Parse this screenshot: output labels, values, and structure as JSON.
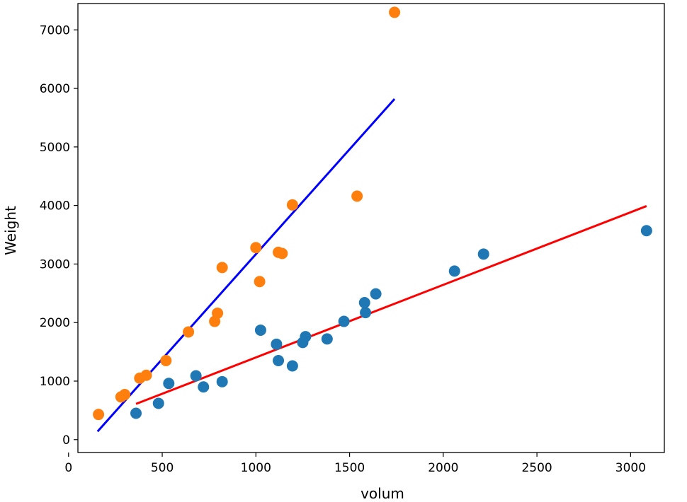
{
  "chart_data": {
    "type": "scatter",
    "title": "",
    "xlabel": "volum",
    "ylabel": "Weight",
    "xlim": [
      50,
      3180
    ],
    "ylim": [
      -220,
      7450
    ],
    "xticks": [
      0,
      500,
      1000,
      1500,
      2000,
      2500,
      3000
    ],
    "yticks": [
      0,
      1000,
      2000,
      3000,
      4000,
      5000,
      6000,
      7000
    ],
    "grid": false,
    "series": [
      {
        "color": "#ff7f0e",
        "points": [
          {
            "x": 160,
            "y": 430
          },
          {
            "x": 280,
            "y": 730
          },
          {
            "x": 300,
            "y": 770
          },
          {
            "x": 380,
            "y": 1050
          },
          {
            "x": 415,
            "y": 1100
          },
          {
            "x": 520,
            "y": 1350
          },
          {
            "x": 640,
            "y": 1840
          },
          {
            "x": 780,
            "y": 2020
          },
          {
            "x": 795,
            "y": 2160
          },
          {
            "x": 820,
            "y": 2940
          },
          {
            "x": 1000,
            "y": 3280
          },
          {
            "x": 1020,
            "y": 2700
          },
          {
            "x": 1120,
            "y": 3200
          },
          {
            "x": 1140,
            "y": 3180
          },
          {
            "x": 1195,
            "y": 4010
          },
          {
            "x": 1540,
            "y": 4160
          },
          {
            "x": 1740,
            "y": 7300
          }
        ]
      },
      {
        "color": "#1f77b4",
        "points": [
          {
            "x": 360,
            "y": 450
          },
          {
            "x": 480,
            "y": 620
          },
          {
            "x": 535,
            "y": 960
          },
          {
            "x": 680,
            "y": 1090
          },
          {
            "x": 720,
            "y": 900
          },
          {
            "x": 820,
            "y": 990
          },
          {
            "x": 1025,
            "y": 1870
          },
          {
            "x": 1110,
            "y": 1630
          },
          {
            "x": 1120,
            "y": 1350
          },
          {
            "x": 1195,
            "y": 1260
          },
          {
            "x": 1250,
            "y": 1660
          },
          {
            "x": 1265,
            "y": 1760
          },
          {
            "x": 1380,
            "y": 1720
          },
          {
            "x": 1470,
            "y": 2020
          },
          {
            "x": 1580,
            "y": 2340
          },
          {
            "x": 1585,
            "y": 2170
          },
          {
            "x": 1640,
            "y": 2490
          },
          {
            "x": 2060,
            "y": 2880
          },
          {
            "x": 2215,
            "y": 3170
          },
          {
            "x": 3085,
            "y": 3570
          }
        ]
      }
    ],
    "lines": [
      {
        "color": "#0000ff",
        "x": [
          155,
          1740
        ],
        "y": [
          140,
          5820
        ]
      },
      {
        "color": "#ff0000",
        "x": [
          360,
          3085
        ],
        "y": [
          610,
          3990
        ]
      }
    ]
  }
}
